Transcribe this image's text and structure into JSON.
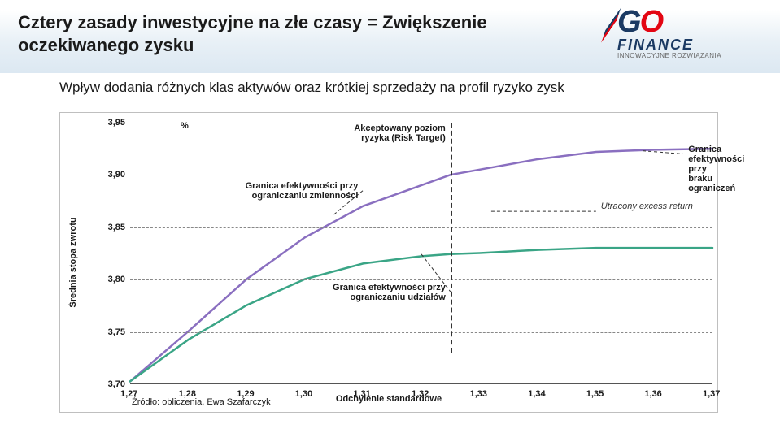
{
  "header": {
    "title_line1": "Cztery zasady inwestycyjne na złe czasy = Zwiększenie",
    "title_line2": "oczekiwanego zysku",
    "title_fontsize": 22,
    "logo_go": "GO",
    "logo_finance": "FINANCE",
    "logo_tag": "INNOWACYJNE ROZWIĄZANIA"
  },
  "subtitle": "Wpływ dodania różnych klas aktywów oraz krótkiej sprzedaży na profil ryzyko zysk",
  "chart": {
    "type": "line",
    "y_unit": "%",
    "y_axis_title": "Średnia stopa zwrotu",
    "x_axis_title": "Odchylenie standardowe",
    "xlim": [
      1.27,
      1.37
    ],
    "ylim": [
      3.7,
      3.95
    ],
    "yticks": [
      3.7,
      3.75,
      3.8,
      3.85,
      3.9,
      3.95
    ],
    "ytick_labels": [
      "3,70",
      "3,75",
      "3,80",
      "3,85",
      "3,90",
      "3,95"
    ],
    "xticks": [
      1.27,
      1.28,
      1.29,
      1.3,
      1.31,
      1.32,
      1.33,
      1.34,
      1.35,
      1.36,
      1.37
    ],
    "xtick_labels": [
      "1,27",
      "1,28",
      "1,29",
      "1,30",
      "1,31",
      "1,32",
      "1,33",
      "1,34",
      "1,35",
      "1,36",
      "1,37"
    ],
    "hgrid_at": [
      3.75,
      3.8,
      3.85,
      3.9,
      3.95
    ],
    "vdash_at": 1.325,
    "grid_color": "#888888",
    "background_color": "#ffffff",
    "series": {
      "purple": {
        "color": "#8a6fc0",
        "width": 2.5,
        "points": [
          [
            1.27,
            3.702
          ],
          [
            1.28,
            3.75
          ],
          [
            1.29,
            3.8
          ],
          [
            1.3,
            3.84
          ],
          [
            1.31,
            3.87
          ],
          [
            1.32,
            3.89
          ],
          [
            1.325,
            3.9
          ],
          [
            1.33,
            3.905
          ],
          [
            1.34,
            3.915
          ],
          [
            1.35,
            3.922
          ],
          [
            1.36,
            3.924
          ],
          [
            1.37,
            3.925
          ]
        ]
      },
      "teal": {
        "color": "#3aa586",
        "width": 2.5,
        "points": [
          [
            1.27,
            3.702
          ],
          [
            1.28,
            3.742
          ],
          [
            1.29,
            3.775
          ],
          [
            1.3,
            3.8
          ],
          [
            1.31,
            3.815
          ],
          [
            1.32,
            3.822
          ],
          [
            1.325,
            3.824
          ],
          [
            1.33,
            3.825
          ],
          [
            1.34,
            3.828
          ],
          [
            1.35,
            3.83
          ],
          [
            1.36,
            3.83
          ],
          [
            1.37,
            3.83
          ]
        ]
      }
    },
    "annotations": [
      {
        "key": "risk_target",
        "text_l1": "Akceptowany poziom",
        "text_l2": "ryzyka (Risk Target)",
        "at_x": 1.325,
        "at_y": 3.94,
        "anchor": "right"
      },
      {
        "key": "eff_vol",
        "text_l1": "Granica efektywności przy",
        "text_l2": "ograniczaniu zmienności",
        "at_x": 1.31,
        "at_y": 3.885,
        "anchor": "right"
      },
      {
        "key": "eff_unbounded",
        "text_l1": "Granica efektywności przy",
        "text_l2": "braku ograniczeń",
        "at_x": 1.365,
        "at_y": 3.92,
        "anchor": "label-right"
      },
      {
        "key": "lost_excess",
        "text_l1": "Utracony excess return",
        "text_l2": "",
        "at_x": 1.35,
        "at_y": 3.865,
        "anchor": "label-right",
        "italic": true
      },
      {
        "key": "eff_shares",
        "text_l1": "Granica efektywności przy",
        "text_l2": "ograniczaniu udziałów",
        "at_x": 1.325,
        "at_y": 3.788,
        "anchor": "right"
      }
    ]
  },
  "source": "Źródło: obliczenia, Ewa Szafarczyk"
}
